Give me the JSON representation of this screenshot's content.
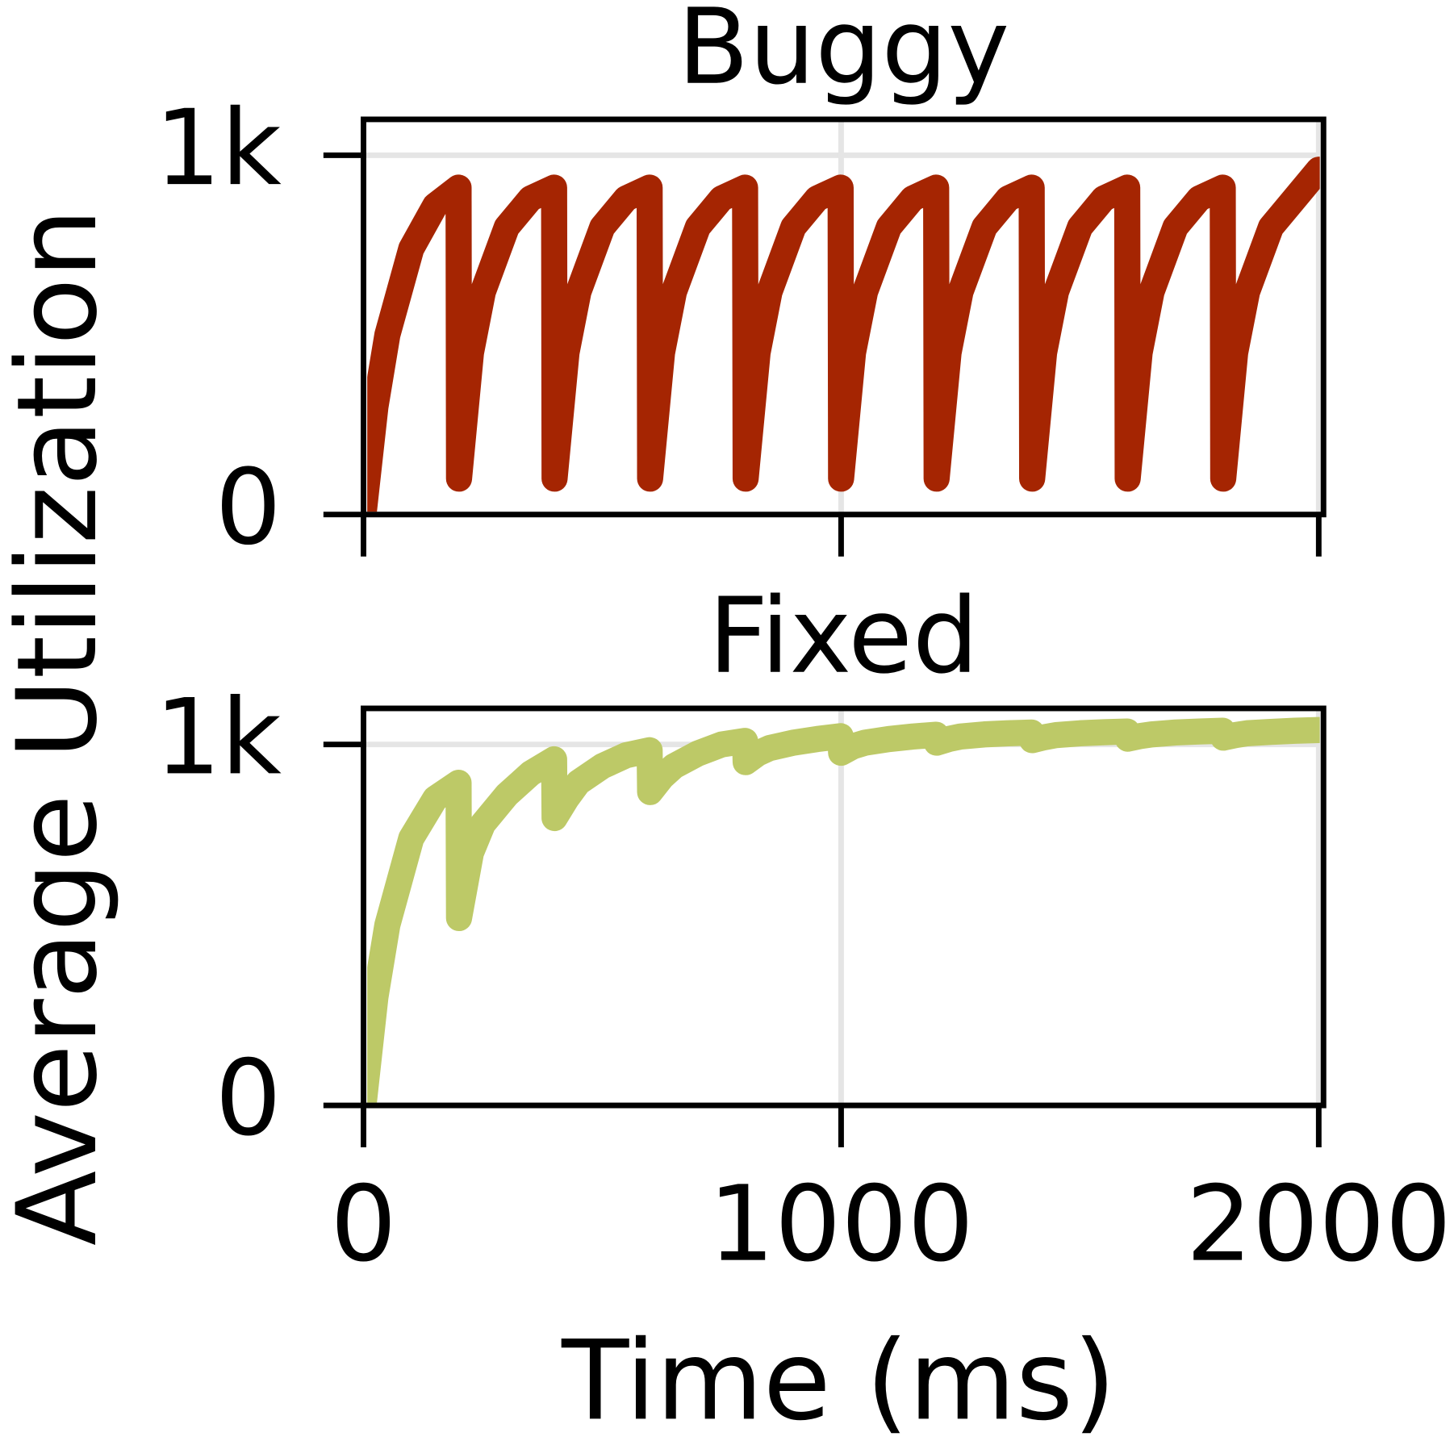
{
  "figure": {
    "xlabel": "Time (ms)",
    "ylabel": "Average Utilization"
  },
  "chart_data": [
    {
      "type": "line",
      "title": "Buggy",
      "color": "#a52502",
      "x": [
        0,
        25,
        50,
        100,
        150,
        199,
        200,
        225,
        250,
        300,
        350,
        399,
        400,
        425,
        450,
        500,
        550,
        599,
        600,
        625,
        650,
        700,
        750,
        799,
        800,
        825,
        850,
        900,
        950,
        999,
        1000,
        1025,
        1050,
        1100,
        1150,
        1199,
        1200,
        1225,
        1250,
        1300,
        1350,
        1399,
        1400,
        1425,
        1450,
        1500,
        1550,
        1599,
        1600,
        1625,
        1650,
        1700,
        1750,
        1799,
        1800,
        1825,
        1850,
        1900,
        1950,
        2000
      ],
      "values": [
        0,
        300,
        500,
        740,
        860,
        910,
        100,
        450,
        620,
        800,
        880,
        910,
        100,
        450,
        620,
        800,
        880,
        910,
        100,
        450,
        620,
        800,
        880,
        910,
        100,
        450,
        620,
        800,
        880,
        910,
        100,
        450,
        620,
        800,
        880,
        910,
        100,
        450,
        620,
        800,
        880,
        910,
        100,
        450,
        620,
        800,
        880,
        910,
        100,
        450,
        620,
        800,
        880,
        910,
        100,
        450,
        620,
        800,
        880,
        960
      ],
      "xlim": [
        0,
        2010
      ],
      "ylim": [
        0,
        1100
      ],
      "xticks": [
        0,
        1000,
        2000
      ],
      "yticks": [
        0,
        {
          "value": 1000,
          "label": "1k"
        }
      ],
      "grid": true
    },
    {
      "type": "line",
      "title": "Fixed",
      "color": "#bdc967",
      "x": [
        0,
        25,
        50,
        100,
        150,
        199,
        200,
        225,
        250,
        300,
        350,
        399,
        400,
        425,
        450,
        500,
        550,
        599,
        600,
        625,
        650,
        700,
        750,
        799,
        800,
        825,
        850,
        900,
        950,
        999,
        1000,
        1025,
        1050,
        1100,
        1150,
        1199,
        1200,
        1225,
        1250,
        1300,
        1350,
        1399,
        1400,
        1425,
        1450,
        1500,
        1550,
        1599,
        1600,
        1625,
        1650,
        1700,
        1750,
        1799,
        1800,
        1825,
        1850,
        1900,
        1950,
        2000
      ],
      "values": [
        0,
        300,
        500,
        740,
        850,
        894,
        519,
        700,
        780,
        860,
        920,
        959,
        796,
        850,
        895,
        940,
        970,
        984,
        868,
        910,
        940,
        975,
        1000,
        1010,
        951,
        975,
        990,
        1005,
        1015,
        1023,
        977,
        995,
        1005,
        1015,
        1022,
        1027,
        1005,
        1015,
        1022,
        1028,
        1031,
        1033,
        1012,
        1020,
        1026,
        1031,
        1034,
        1036,
        1016,
        1023,
        1028,
        1033,
        1036,
        1038,
        1019,
        1026,
        1031,
        1035,
        1038,
        1040
      ],
      "xlim": [
        0,
        2010
      ],
      "ylim": [
        0,
        1100
      ],
      "xticks": [
        0,
        1000,
        2000
      ],
      "yticks": [
        0,
        {
          "value": 1000,
          "label": "1k"
        }
      ],
      "grid": true
    }
  ]
}
